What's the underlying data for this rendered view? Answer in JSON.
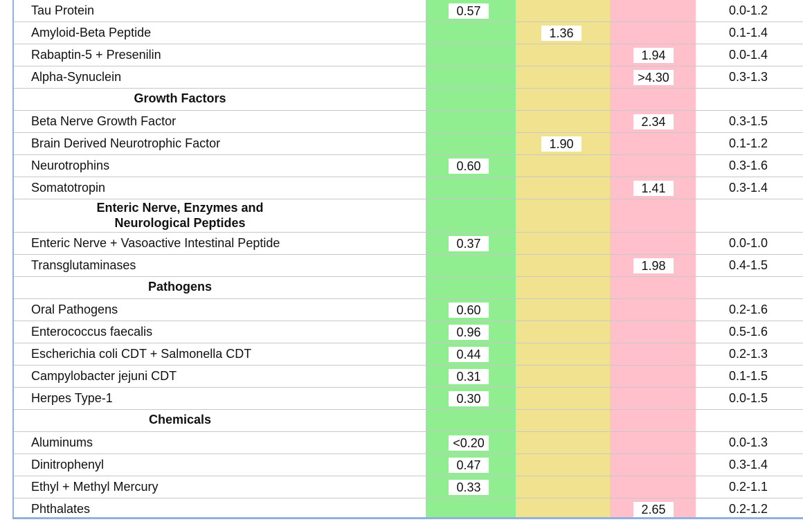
{
  "rows": [
    {
      "type": "item",
      "label": "Tau Protein",
      "value": "0.57",
      "zone": "green",
      "range": "0.0-1.2"
    },
    {
      "type": "item",
      "label": "Amyloid-Beta Peptide",
      "value": "1.36",
      "zone": "yellow",
      "range": "0.1-1.4"
    },
    {
      "type": "item",
      "label": "Rabaptin-5 + Presenilin",
      "value": "1.94",
      "zone": "red",
      "range": "0.0-1.4"
    },
    {
      "type": "item",
      "label": "Alpha-Synuclein",
      "value": ">4.30",
      "zone": "red",
      "range": "0.3-1.3"
    },
    {
      "type": "header",
      "label": "Growth Factors"
    },
    {
      "type": "item",
      "label": "Beta Nerve Growth Factor",
      "value": "2.34",
      "zone": "red",
      "range": "0.3-1.5"
    },
    {
      "type": "item",
      "label": "Brain Derived Neurotrophic Factor",
      "value": "1.90",
      "zone": "yellow",
      "range": "0.1-1.2"
    },
    {
      "type": "item",
      "label": "Neurotrophins",
      "value": "0.60",
      "zone": "green",
      "range": "0.3-1.6"
    },
    {
      "type": "item",
      "label": "Somatotropin",
      "value": "1.41",
      "zone": "red",
      "range": "0.3-1.4"
    },
    {
      "type": "header",
      "label": "Enteric Nerve, Enzymes and",
      "label2": "Neurological Peptides"
    },
    {
      "type": "item",
      "label": "Enteric Nerve + Vasoactive Intestinal Peptide",
      "value": "0.37",
      "zone": "green",
      "range": "0.0-1.0"
    },
    {
      "type": "item",
      "label": "Transglutaminases",
      "value": "1.98",
      "zone": "red",
      "range": "0.4-1.5"
    },
    {
      "type": "header",
      "label": "Pathogens"
    },
    {
      "type": "item",
      "label": "Oral Pathogens",
      "value": "0.60",
      "zone": "green",
      "range": "0.2-1.6"
    },
    {
      "type": "item",
      "label": "Enterococcus faecalis",
      "value": "0.96",
      "zone": "green",
      "range": "0.5-1.6"
    },
    {
      "type": "item",
      "label": "Escherichia coli CDT + Salmonella CDT",
      "value": "0.44",
      "zone": "green",
      "range": "0.2-1.3"
    },
    {
      "type": "item",
      "label": "Campylobacter jejuni CDT",
      "value": "0.31",
      "zone": "green",
      "range": "0.1-1.5"
    },
    {
      "type": "item",
      "label": "Herpes Type-1",
      "value": "0.30",
      "zone": "green",
      "range": "0.0-1.5"
    },
    {
      "type": "header",
      "label": "Chemicals"
    },
    {
      "type": "item",
      "label": "Aluminums",
      "value": "<0.20",
      "zone": "green",
      "range": "0.0-1.3"
    },
    {
      "type": "item",
      "label": "Dinitrophenyl",
      "value": "0.47",
      "zone": "green",
      "range": "0.3-1.4"
    },
    {
      "type": "item",
      "label": "Ethyl + Methyl Mercury",
      "value": "0.33",
      "zone": "green",
      "range": "0.2-1.1"
    },
    {
      "type": "item",
      "label": "Phthalates",
      "value": "2.65",
      "zone": "red",
      "range": "0.2-1.2"
    }
  ],
  "colors": {
    "green": "#90ee90",
    "yellow": "#f0e28e",
    "red": "#ffc0cb",
    "frame": "#8fb1db"
  }
}
